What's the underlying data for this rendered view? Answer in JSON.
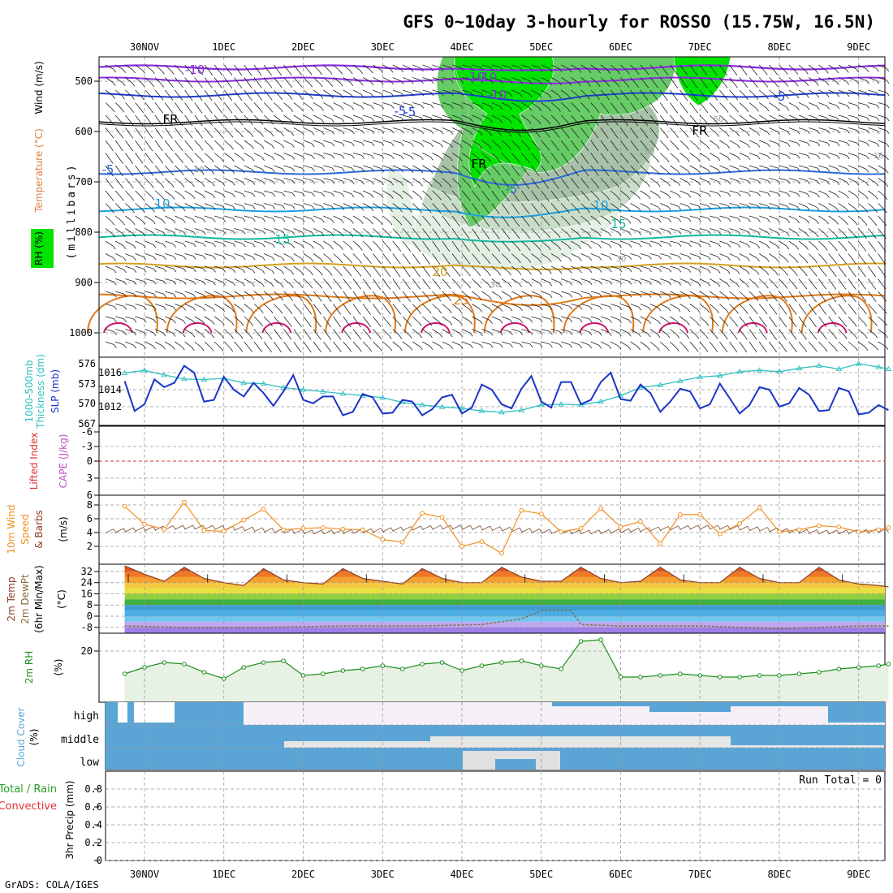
{
  "title": "GFS 0~10day 3-hourly for ROSSO (15.75W, 16.5N)",
  "footer": "GrADS: COLA/IGES",
  "colors": {
    "rh_green": "#00e400",
    "rh_grey": "#9aa89a",
    "wind_barb": "#111111",
    "temp_levels": [
      "#8a2be2",
      "#1e3fd0",
      "#2a6ad8",
      "#1aa0e0",
      "#12b8a0",
      "#20b470",
      "#d4a020",
      "#e07818",
      "#d01070"
    ],
    "slp": "#1a35c8",
    "thickness": "#30c0c0",
    "lifted_index": "#e03030",
    "cape": "#c050c0",
    "wind_speed": "#f09020",
    "temp_line": "#8a3a20",
    "dewpt_line": "#8a6a40",
    "rh2m": "#209020",
    "cloud": "#5aa5d5",
    "cloud_bg": "#e6e6e6"
  },
  "x_axis": {
    "top_labels": [
      "30NOV",
      "1DEC",
      "2DEC",
      "3DEC",
      "4DEC",
      "5DEC",
      "6DEC",
      "7DEC",
      "8DEC",
      "9DEC"
    ],
    "bottom_labels": [
      "30NOV",
      "1DEC",
      "2DEC",
      "3DEC",
      "4DEC",
      "5DEC",
      "6DEC",
      "7DEC",
      "8DEC",
      "9DEC"
    ]
  },
  "panels": {
    "upper": {
      "ylabel_rh": "RH (%)",
      "ylabel_temp": "Temperature (°C)",
      "ylabel_wind": "Wind (m/s)",
      "ylabel_mb": "(millibars)",
      "yticks": [
        "500",
        "600",
        "700",
        "800",
        "900",
        "1000"
      ],
      "contour_labels": [
        "-10",
        "-10",
        "-5",
        "-5",
        "-5",
        "FR",
        "FR",
        "FR",
        "-5",
        "-10",
        "10",
        "15",
        "-10",
        "15",
        "20",
        "25",
        "10",
        "10",
        "30",
        "50",
        "30",
        "50",
        "16",
        "-5"
      ]
    },
    "slp": {
      "ylabel_thk": "Thickness (dm)",
      "ylabel_thk2": "1000-500mb",
      "ylabel_slp": "SLP (mb)",
      "left_ticks": [
        "576",
        "573",
        "570",
        "567"
      ],
      "right_ticks": [
        "1016",
        "1014",
        "1012"
      ]
    },
    "li": {
      "ylabel_li": "Lifted Index",
      "ylabel_cape": "CAPE (J/kg)",
      "yticks": [
        "-6",
        "-3",
        "0",
        "3",
        "6"
      ]
    },
    "wind10": {
      "ylabel1": "10m Wind",
      "ylabel2": "Speed",
      "ylabel3": "& Barbs",
      "ylabel_unit": "(m/s)",
      "yticks": [
        "8",
        "6",
        "4",
        "2"
      ]
    },
    "temp2m": {
      "ylabel1": "2m Temp",
      "ylabel2": "2m DewPt",
      "ylabel3": "(6hr Min/Max)",
      "ylabel_unit": "(°C)",
      "yticks": [
        "32",
        "24",
        "16",
        "8",
        "0",
        "-8"
      ]
    },
    "rh2m": {
      "ylabel": "2m RH",
      "ylabel_unit": "(%)",
      "yticks": [
        "20"
      ]
    },
    "cloud": {
      "ylabel": "Cloud Cover",
      "ylabel_unit": "(%)",
      "levels": [
        "high",
        "middle",
        "low"
      ]
    },
    "precip": {
      "ylabel1": "Total / Rain",
      "ylabel2": "Convective",
      "ylabel3": "3hr Precip (mm)",
      "run_total": "Run Total = 0",
      "yticks": [
        "0.8",
        "0.6",
        "0.4",
        "0.2",
        "0"
      ]
    }
  },
  "chart_data": [
    {
      "type": "line",
      "title": "SLP (mb)",
      "x": [
        "29NOV18",
        "29NOV21",
        "30NOV00",
        "30NOV03",
        "30NOV06",
        "30NOV09",
        "30NOV12",
        "30NOV15",
        "30NOV18",
        "30NOV21",
        "1DEC00",
        "1DEC03",
        "1DEC06",
        "1DEC09",
        "1DEC12",
        "1DEC15",
        "1DEC18",
        "1DEC21",
        "2DEC00",
        "2DEC03",
        "2DEC06",
        "2DEC09",
        "2DEC12",
        "2DEC15",
        "2DEC18",
        "2DEC21",
        "3DEC00",
        "3DEC03",
        "3DEC06",
        "3DEC09",
        "3DEC12",
        "3DEC15",
        "3DEC18",
        "3DEC21",
        "4DEC00",
        "4DEC03",
        "4DEC06",
        "4DEC09",
        "4DEC12",
        "4DEC15",
        "4DEC18",
        "4DEC21",
        "5DEC00",
        "5DEC03",
        "5DEC06",
        "5DEC09",
        "5DEC12",
        "5DEC15",
        "5DEC18",
        "5DEC21",
        "6DEC00",
        "6DEC03",
        "6DEC06",
        "6DEC09",
        "6DEC12",
        "6DEC15",
        "6DEC18",
        "6DEC21",
        "7DEC00",
        "7DEC03",
        "7DEC06",
        "7DEC09",
        "7DEC12",
        "7DEC15",
        "7DEC18",
        "7DEC21",
        "8DEC00",
        "8DEC03",
        "8DEC06",
        "8DEC09",
        "8DEC12",
        "8DEC15",
        "8DEC18",
        "8DEC21",
        "9DEC00",
        "9DEC03",
        "9DEC06",
        "9DEC09"
      ],
      "values": [
        1015.0,
        1011.5,
        1012.3,
        1015.2,
        1014.3,
        1014.8,
        1016.8,
        1016.0,
        1012.6,
        1012.8,
        1015.5,
        1014.0,
        1013.2,
        1014.8,
        1013.6,
        1012.1,
        1013.8,
        1015.7,
        1012.8,
        1012.4,
        1013.2,
        1013.2,
        1011.0,
        1011.4,
        1013.5,
        1013.1,
        1011.2,
        1011.3,
        1012.8,
        1012.6,
        1011.0,
        1011.7,
        1013.1,
        1013.4,
        1011.2,
        1011.9,
        1014.6,
        1014.0,
        1012.3,
        1011.8,
        1014.1,
        1015.6,
        1012.6,
        1011.9,
        1014.9,
        1014.9,
        1012.3,
        1012.8,
        1014.9,
        1016.0,
        1012.9,
        1012.7,
        1014.6,
        1013.6,
        1011.4,
        1012.6,
        1014.1,
        1013.8,
        1011.8,
        1012.3,
        1014.7,
        1013.0,
        1011.2,
        1012.2,
        1014.3,
        1014.0,
        1012.0,
        1012.4,
        1014.2,
        1013.4,
        1011.5,
        1011.6,
        1014.2,
        1013.8,
        1011.1,
        1011.3,
        1012.2,
        1011.6
      ]
    },
    {
      "type": "line",
      "title": "Thickness (dm)",
      "x": [
        "29NOV18",
        "30NOV00",
        "30NOV06",
        "30NOV12",
        "30NOV18",
        "1DEC00",
        "1DEC06",
        "1DEC12",
        "1DEC18",
        "2DEC00",
        "2DEC06",
        "2DEC12",
        "2DEC18",
        "3DEC00",
        "3DEC06",
        "3DEC12",
        "3DEC18",
        "4DEC00",
        "4DEC06",
        "4DEC12",
        "4DEC18",
        "5DEC00",
        "5DEC06",
        "5DEC12",
        "5DEC18",
        "6DEC00",
        "6DEC06",
        "6DEC12",
        "6DEC18",
        "7DEC00",
        "7DEC06",
        "7DEC12",
        "7DEC18",
        "8DEC00",
        "8DEC06",
        "8DEC12",
        "8DEC18",
        "9DEC00",
        "9DEC06",
        "9DEC09"
      ],
      "values": [
        574.6,
        575.0,
        574.3,
        573.7,
        573.6,
        573.8,
        573.1,
        573.0,
        572.4,
        572.1,
        571.8,
        571.5,
        571.2,
        570.9,
        570.2,
        569.8,
        569.5,
        569.3,
        568.9,
        568.7,
        569.0,
        569.8,
        569.9,
        569.8,
        570.3,
        571.2,
        572.4,
        572.8,
        573.4,
        574.0,
        574.2,
        574.8,
        575.0,
        574.8,
        575.3,
        575.7,
        575.2,
        576.0,
        575.5,
        575.2
      ]
    },
    {
      "type": "line",
      "title": "10m Wind Speed (m/s)",
      "x": [
        "29NOV18",
        "30NOV00",
        "30NOV06",
        "30NOV12",
        "30NOV18",
        "1DEC00",
        "1DEC06",
        "1DEC12",
        "1DEC18",
        "2DEC00",
        "2DEC06",
        "2DEC12",
        "2DEC18",
        "3DEC00",
        "3DEC06",
        "3DEC12",
        "3DEC18",
        "4DEC00",
        "4DEC06",
        "4DEC12",
        "4DEC18",
        "5DEC00",
        "5DEC06",
        "5DEC12",
        "5DEC18",
        "6DEC00",
        "6DEC06",
        "6DEC12",
        "6DEC18",
        "7DEC00",
        "7DEC06",
        "7DEC12",
        "7DEC18",
        "8DEC00",
        "8DEC06",
        "8DEC12",
        "8DEC18",
        "9DEC00",
        "9DEC06",
        "9DEC09"
      ],
      "values": [
        7.8,
        5.2,
        4.5,
        8.4,
        4.3,
        4.2,
        5.8,
        7.4,
        4.4,
        4.6,
        4.7,
        4.5,
        4.4,
        3.0,
        2.6,
        6.8,
        6.2,
        2.0,
        2.7,
        1.0,
        7.2,
        6.7,
        4.1,
        4.6,
        7.5,
        4.8,
        5.6,
        2.4,
        6.6,
        6.6,
        3.8,
        5.3,
        7.6,
        4.1,
        4.4,
        5.0,
        4.8,
        4.1,
        4.4,
        4.7
      ]
    },
    {
      "type": "area",
      "title": "2m Temp (°C)",
      "x": [
        "29NOV18",
        "30NOV00",
        "30NOV06",
        "30NOV12",
        "30NOV18",
        "1DEC00",
        "1DEC06",
        "1DEC12",
        "1DEC18",
        "2DEC00",
        "2DEC06",
        "2DEC12",
        "2DEC18",
        "3DEC00",
        "3DEC06",
        "3DEC12",
        "3DEC18",
        "4DEC00",
        "4DEC06",
        "4DEC12",
        "4DEC18",
        "5DEC00",
        "5DEC06",
        "5DEC12",
        "5DEC18",
        "6DEC00",
        "6DEC06",
        "6DEC12",
        "6DEC18",
        "7DEC00",
        "7DEC06",
        "7DEC12",
        "7DEC18",
        "8DEC00",
        "8DEC06",
        "8DEC12",
        "8DEC18",
        "9DEC00",
        "9DEC06",
        "9DEC09"
      ],
      "values": [
        36,
        30,
        25,
        35,
        27,
        24,
        22,
        34,
        26,
        24,
        23,
        34,
        27,
        25,
        23,
        34,
        27,
        24,
        24,
        35,
        28,
        25,
        25,
        35,
        27,
        24,
        25,
        35,
        26,
        24,
        24,
        35,
        27,
        24,
        24,
        35,
        26,
        23,
        22,
        21
      ]
    },
    {
      "type": "line",
      "title": "2m DewPt (°C)",
      "x": [
        "29NOV18",
        "30NOV12",
        "1DEC12",
        "2DEC12",
        "3DEC12",
        "4DEC06",
        "4DEC18",
        "5DEC00",
        "5DEC09",
        "5DEC12",
        "6DEC00",
        "7DEC00",
        "8DEC00",
        "9DEC00",
        "9DEC09"
      ],
      "values": [
        -7,
        -8,
        -8,
        -7,
        -7,
        -6,
        -2,
        4,
        4,
        -6,
        -7,
        -7,
        -9,
        -7,
        -7
      ]
    },
    {
      "type": "line",
      "title": "2m RH (%)",
      "x": [
        "29NOV18",
        "30NOV00",
        "30NOV06",
        "30NOV12",
        "30NOV18",
        "1DEC00",
        "1DEC06",
        "1DEC12",
        "1DEC18",
        "2DEC00",
        "2DEC06",
        "2DEC12",
        "2DEC18",
        "3DEC00",
        "3DEC06",
        "3DEC12",
        "3DEC18",
        "4DEC00",
        "4DEC06",
        "4DEC12",
        "4DEC18",
        "5DEC00",
        "5DEC06",
        "5DEC12",
        "5DEC18",
        "6DEC00",
        "6DEC06",
        "6DEC12",
        "6DEC18",
        "7DEC00",
        "7DEC06",
        "7DEC12",
        "7DEC18",
        "8DEC00",
        "8DEC06",
        "8DEC12",
        "8DEC18",
        "9DEC00",
        "9DEC06",
        "9DEC09"
      ],
      "values": [
        6,
        10,
        13,
        12,
        7,
        3,
        10,
        13,
        14,
        5,
        6,
        8,
        9,
        11,
        9,
        12,
        13,
        8,
        11,
        13,
        14,
        11,
        9,
        26,
        27,
        4,
        4,
        5,
        6,
        5,
        4,
        4,
        5,
        5,
        6,
        7,
        9,
        10,
        11,
        12
      ]
    },
    {
      "type": "bar",
      "title": "3hr Precip (mm)",
      "categories": [
        "30NOV",
        "1DEC",
        "2DEC",
        "3DEC",
        "4DEC",
        "5DEC",
        "6DEC",
        "7DEC",
        "8DEC",
        "9DEC"
      ],
      "values": [
        0,
        0,
        0,
        0,
        0,
        0,
        0,
        0,
        0,
        0
      ],
      "ylim": [
        0,
        0.9
      ]
    }
  ]
}
